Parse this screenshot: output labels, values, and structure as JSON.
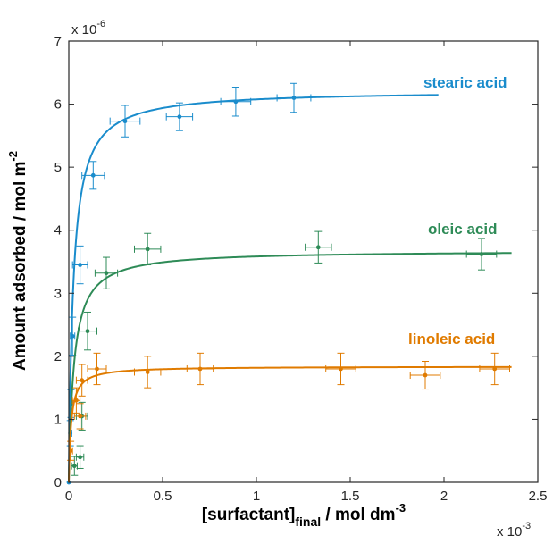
{
  "chart_data": {
    "type": "scatter",
    "xlabel": {
      "main": "[surfactant]",
      "sub": "final",
      "rest": " / mol dm",
      "sup": "-3"
    },
    "ylabel": {
      "main": "Amount adsorbed / mol m",
      "sup": "-2"
    },
    "x_exponent": {
      "base": "x 10",
      "sup": "-3"
    },
    "y_exponent": {
      "base": "x 10",
      "sup": "-6"
    },
    "xlim": [
      0,
      2.5
    ],
    "ylim": [
      0,
      7
    ],
    "xticks": [
      0,
      0.5,
      1,
      1.5,
      2,
      2.5
    ],
    "xtick_labels": [
      "0",
      "0.5",
      "1",
      "1.5",
      "2",
      "2.5"
    ],
    "yticks": [
      0,
      1,
      2,
      3,
      4,
      5,
      6,
      7
    ],
    "ytick_labels": [
      "0",
      "1",
      "2",
      "3",
      "4",
      "5",
      "6",
      "7"
    ],
    "grid": false,
    "series": [
      {
        "name": "stearic acid",
        "color": "#1a8ccc",
        "fit": {
          "qmax": 6.22,
          "K": 42,
          "xmax": 1.97
        },
        "points": [
          {
            "x": 0.0,
            "y": 0.0,
            "xerr": 0.0,
            "yerr": 0.0
          },
          {
            "x": 0.008,
            "y": 0.78,
            "xerr": 0.008,
            "yerr": 0.2
          },
          {
            "x": 0.012,
            "y": 1.25,
            "xerr": 0.01,
            "yerr": 0.22
          },
          {
            "x": 0.02,
            "y": 2.32,
            "xerr": 0.012,
            "yerr": 0.3
          },
          {
            "x": 0.06,
            "y": 3.45,
            "xerr": 0.04,
            "yerr": 0.3
          },
          {
            "x": 0.13,
            "y": 4.87,
            "xerr": 0.06,
            "yerr": 0.22
          },
          {
            "x": 0.3,
            "y": 5.73,
            "xerr": 0.08,
            "yerr": 0.25
          },
          {
            "x": 0.59,
            "y": 5.8,
            "xerr": 0.07,
            "yerr": 0.22
          },
          {
            "x": 0.89,
            "y": 6.04,
            "xerr": 0.08,
            "yerr": 0.23
          },
          {
            "x": 1.2,
            "y": 6.1,
            "xerr": 0.09,
            "yerr": 0.23
          }
        ]
      },
      {
        "name": "oleic acid",
        "color": "#2e8b57",
        "fit": {
          "qmax": 3.68,
          "K": 37,
          "xmax": 2.36
        },
        "points": [
          {
            "x": 0.03,
            "y": 0.26,
            "xerr": 0.015,
            "yerr": 0.15
          },
          {
            "x": 0.06,
            "y": 0.4,
            "xerr": 0.02,
            "yerr": 0.18
          },
          {
            "x": 0.07,
            "y": 1.05,
            "xerr": 0.03,
            "yerr": 0.22
          },
          {
            "x": 0.1,
            "y": 2.4,
            "xerr": 0.05,
            "yerr": 0.3
          },
          {
            "x": 0.2,
            "y": 3.32,
            "xerr": 0.06,
            "yerr": 0.25
          },
          {
            "x": 0.42,
            "y": 3.7,
            "xerr": 0.07,
            "yerr": 0.25
          },
          {
            "x": 1.33,
            "y": 3.73,
            "xerr": 0.07,
            "yerr": 0.25
          },
          {
            "x": 2.2,
            "y": 3.62,
            "xerr": 0.08,
            "yerr": 0.25
          }
        ]
      },
      {
        "name": "linoleic acid",
        "color": "#e07b00",
        "fit": {
          "qmax": 1.84,
          "K": 80,
          "xmax": 2.36
        },
        "points": [
          {
            "x": 0.01,
            "y": 0.5,
            "xerr": 0.01,
            "yerr": 0.15
          },
          {
            "x": 0.04,
            "y": 1.3,
            "xerr": 0.02,
            "yerr": 0.2
          },
          {
            "x": 0.06,
            "y": 1.05,
            "xerr": 0.03,
            "yerr": 0.2
          },
          {
            "x": 0.07,
            "y": 1.62,
            "xerr": 0.03,
            "yerr": 0.25
          },
          {
            "x": 0.15,
            "y": 1.8,
            "xerr": 0.05,
            "yerr": 0.25
          },
          {
            "x": 0.42,
            "y": 1.75,
            "xerr": 0.07,
            "yerr": 0.25
          },
          {
            "x": 0.7,
            "y": 1.8,
            "xerr": 0.07,
            "yerr": 0.25
          },
          {
            "x": 1.45,
            "y": 1.8,
            "xerr": 0.08,
            "yerr": 0.25
          },
          {
            "x": 1.9,
            "y": 1.7,
            "xerr": 0.08,
            "yerr": 0.22
          },
          {
            "x": 2.27,
            "y": 1.8,
            "xerr": 0.08,
            "yerr": 0.25
          }
        ]
      }
    ]
  }
}
